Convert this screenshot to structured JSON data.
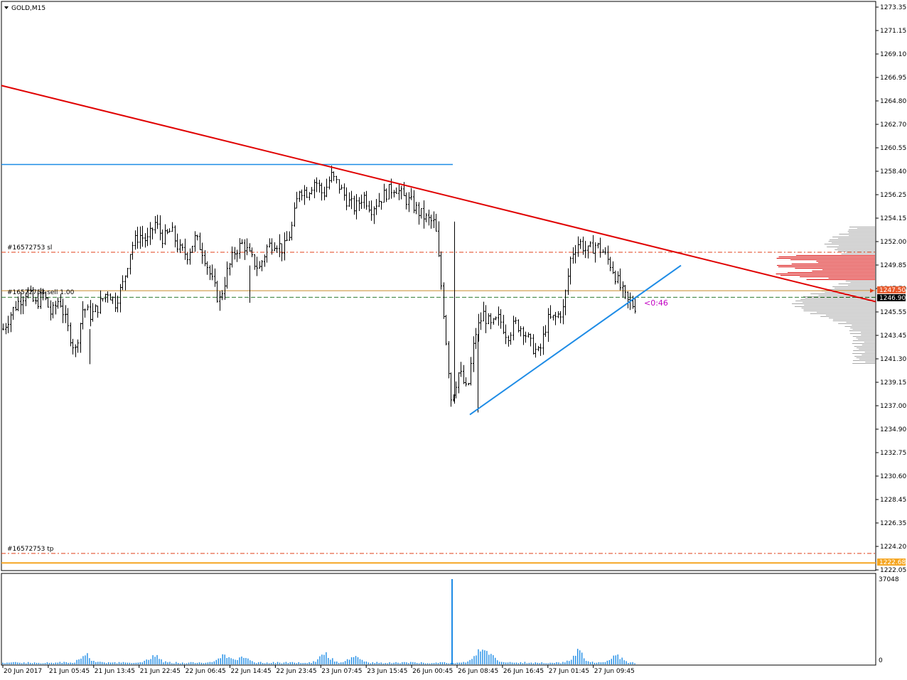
{
  "window": {
    "symbol_title": "GOLD,M15",
    "dropdown_icon": "triangle-down-icon"
  },
  "order_labels": {
    "sl": "#16572753 sl",
    "sell": "#16572753 sell 1.00",
    "tp": "#16572753 tp"
  },
  "countdown": "<0:46",
  "price_badges": {
    "order": "1247.50",
    "bid": "1246.90",
    "level": "1222.68"
  },
  "colors": {
    "candle": "#000000",
    "trend_down": "#e00000",
    "trend_up": "#1e8ce6",
    "resistance": "#1e8ce6",
    "sl_line": "#e0401a",
    "tp_line": "#e0401a",
    "sell_line": "#c88b2a",
    "bid_line": "#2e7d32",
    "level_line": "#f5a623",
    "volume": "#1e8ce6",
    "countdown": "#c200c2",
    "profile_gray": "#a8a8a8",
    "profile_red": "#d80000",
    "badge_order_bg": "#e85a2c",
    "badge_bid_bg": "#000000",
    "badge_level_bg": "#f5a623"
  },
  "chart_data": {
    "type": "candlestick",
    "title": "GOLD,M15",
    "ylim": [
      1222.05,
      1273.35
    ],
    "price_ticks": [
      "1273.35",
      "1271.15",
      "1269.10",
      "1266.95",
      "1264.80",
      "1262.70",
      "1260.55",
      "1258.40",
      "1256.25",
      "1254.15",
      "1252.00",
      "1249.85",
      "1247.70",
      "1245.55",
      "1243.45",
      "1241.30",
      "1239.15",
      "1237.00",
      "1234.90",
      "1232.75",
      "1230.60",
      "1228.45",
      "1226.35",
      "1224.20",
      "1222.05"
    ],
    "time_ticks": [
      "20 Jun 2017",
      "21 Jun 05:45",
      "21 Jun 13:45",
      "21 Jun 22:45",
      "22 Jun 06:45",
      "22 Jun 14:45",
      "22 Jun 23:45",
      "23 Jun 07:45",
      "23 Jun 15:45",
      "26 Jun 00:45",
      "26 Jun 08:45",
      "26 Jun 16:45",
      "27 Jun 01:45",
      "27 Jun 09:45"
    ],
    "price_path": [
      1244.0,
      1245.5,
      1246.6,
      1247.5,
      1246.2,
      1247.2,
      1245.3,
      1246.8,
      1244.2,
      1242.0,
      1246.0,
      1245.2,
      1246.2,
      1247.5,
      1246.4,
      1248.2,
      1251.5,
      1252.6,
      1252.0,
      1253.7,
      1252.2,
      1253.0,
      1251.2,
      1250.8,
      1252.3,
      1251.0,
      1248.6,
      1246.5,
      1249.2,
      1251.2,
      1251.8,
      1250.4,
      1249.5,
      1251.5,
      1252.0,
      1251.2,
      1253.0,
      1256.8,
      1256.5,
      1257.6,
      1256.2,
      1258.0,
      1257.0,
      1255.7,
      1255.0,
      1256.2,
      1255.0,
      1255.8,
      1256.5,
      1257.0,
      1256.0,
      1255.5,
      1254.6,
      1254.0,
      1253.6,
      1246.0,
      1237.6,
      1240.2,
      1238.2,
      1243.5,
      1245.4,
      1244.2,
      1245.0,
      1243.4,
      1244.5,
      1244.0,
      1242.5,
      1241.7,
      1244.8,
      1245.0,
      1245.8,
      1250.8,
      1252.0,
      1251.0,
      1251.7,
      1251.0,
      1249.8,
      1248.0,
      1246.5,
      1246.1
    ],
    "volume_ylim": [
      0,
      37048
    ],
    "volume_ticks": [
      "37048",
      "0"
    ],
    "volume_spike": 37048,
    "price_scale_unit": "USD",
    "sl_price": 1251.0,
    "sell_price": 1247.5,
    "bid_price": 1246.9,
    "tp_price": 1223.55,
    "level_price": 1222.68,
    "resistance_price": 1259.0,
    "trend_down": {
      "from": {
        "time_frac": 0.0,
        "price": 1266.2
      },
      "to": {
        "time_frac": 1.0,
        "price": 1246.5
      }
    },
    "trend_up": {
      "from": {
        "time_frac": 0.538,
        "price": 1236.2
      },
      "to": {
        "time_frac": 0.781,
        "price": 1249.8
      }
    }
  }
}
